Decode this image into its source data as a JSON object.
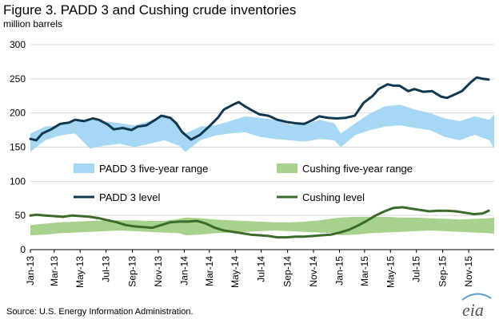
{
  "chart_data": {
    "type": "line",
    "title": "Figure 3. PADD 3 and Cushing crude inventories",
    "subtitle": "million barrels",
    "ylabel": "",
    "xlabel": "",
    "ylim": [
      0,
      300
    ],
    "yticks": [
      0,
      50,
      100,
      150,
      200,
      250,
      300
    ],
    "xlim": [
      "2013-01-04",
      "2015-12-31"
    ],
    "xtick_labels": [
      {
        "date": "2013-01-01",
        "label": "Jan-13"
      },
      {
        "date": "2013-03-01",
        "label": "Mar-13"
      },
      {
        "date": "2013-05-01",
        "label": "May-13"
      },
      {
        "date": "2013-07-01",
        "label": "Jul-13"
      },
      {
        "date": "2013-09-01",
        "label": "Sep-13"
      },
      {
        "date": "2013-11-01",
        "label": "Nov-13"
      },
      {
        "date": "2014-01-01",
        "label": "Jan-14"
      },
      {
        "date": "2014-03-01",
        "label": "Mar-14"
      },
      {
        "date": "2014-05-01",
        "label": "May-14"
      },
      {
        "date": "2014-07-01",
        "label": "Jul-14"
      },
      {
        "date": "2014-09-01",
        "label": "Sep-14"
      },
      {
        "date": "2014-11-01",
        "label": "Nov-14"
      },
      {
        "date": "2015-01-01",
        "label": "Jan-15"
      },
      {
        "date": "2015-03-01",
        "label": "Mar-15"
      },
      {
        "date": "2015-05-01",
        "label": "May-15"
      },
      {
        "date": "2015-07-01",
        "label": "Jul-15"
      },
      {
        "date": "2015-09-01",
        "label": "Sep-15"
      },
      {
        "date": "2015-11-01",
        "label": "Nov-15"
      }
    ],
    "grid": true,
    "legend": [
      {
        "name": "PADD 3 five-year range",
        "kind": "area",
        "color": "#a6d8f5"
      },
      {
        "name": "Cushing five-year range",
        "kind": "area",
        "color": "#a9d18e"
      },
      {
        "name": "PADD 3 level",
        "kind": "line",
        "color": "#10384f"
      },
      {
        "name": "Cushing level",
        "kind": "line",
        "color": "#3a6b28"
      }
    ],
    "series": [
      {
        "name": "PADD 3 five-year range",
        "type": "area",
        "color": "#a6d8f5",
        "x": [
          "2013-01-04",
          "2013-02-08",
          "2013-03-15",
          "2013-04-19",
          "2013-05-24",
          "2013-06-28",
          "2013-08-02",
          "2013-09-06",
          "2013-10-11",
          "2013-11-15",
          "2013-12-20",
          "2014-01-04",
          "2014-02-08",
          "2014-03-15",
          "2014-04-19",
          "2014-05-24",
          "2014-06-28",
          "2014-08-02",
          "2014-09-06",
          "2014-10-11",
          "2014-11-15",
          "2014-12-20",
          "2015-01-04",
          "2015-02-08",
          "2015-03-15",
          "2015-04-19",
          "2015-05-24",
          "2015-06-28",
          "2015-08-02",
          "2015-09-06",
          "2015-10-11",
          "2015-11-15",
          "2015-12-20",
          "2015-12-31"
        ],
        "low": [
          143,
          160,
          167,
          170,
          148,
          152,
          155,
          150,
          155,
          160,
          152,
          143,
          160,
          167,
          170,
          172,
          165,
          162,
          160,
          158,
          162,
          160,
          150,
          168,
          175,
          180,
          182,
          178,
          175,
          165,
          160,
          168,
          160,
          148
        ],
        "high": [
          170,
          180,
          182,
          188,
          190,
          188,
          185,
          182,
          188,
          198,
          180,
          170,
          180,
          182,
          188,
          195,
          193,
          190,
          183,
          183,
          190,
          185,
          170,
          185,
          200,
          210,
          212,
          205,
          200,
          192,
          188,
          195,
          190,
          198
        ]
      },
      {
        "name": "Cushing five-year range",
        "type": "area",
        "color": "#a9d18e",
        "x": [
          "2013-01-04",
          "2013-02-08",
          "2013-03-15",
          "2013-04-19",
          "2013-05-24",
          "2013-06-28",
          "2013-08-02",
          "2013-09-06",
          "2013-10-11",
          "2013-11-15",
          "2013-12-20",
          "2014-01-04",
          "2014-02-08",
          "2014-03-15",
          "2014-04-19",
          "2014-05-24",
          "2014-06-28",
          "2014-08-02",
          "2014-09-06",
          "2014-10-11",
          "2014-11-15",
          "2014-12-20",
          "2015-01-04",
          "2015-02-08",
          "2015-03-15",
          "2015-04-19",
          "2015-05-24",
          "2015-06-28",
          "2015-08-02",
          "2015-09-06",
          "2015-10-11",
          "2015-11-15",
          "2015-12-20",
          "2015-12-31"
        ],
        "low": [
          21,
          22,
          24,
          25,
          26,
          27,
          28,
          27,
          26,
          25,
          24,
          21,
          22,
          24,
          25,
          26,
          27,
          28,
          27,
          26,
          25,
          24,
          21,
          22,
          24,
          25,
          26,
          27,
          28,
          27,
          26,
          25,
          24,
          23
        ],
        "high": [
          36,
          38,
          40,
          41,
          42,
          43,
          43,
          43,
          42,
          42,
          45,
          47,
          46,
          44,
          43,
          42,
          41,
          40,
          40,
          41,
          43,
          46,
          47,
          48,
          48,
          48,
          47,
          47,
          46,
          45,
          44,
          45,
          46,
          47
        ]
      },
      {
        "name": "PADD 3 level",
        "type": "line",
        "color": "#10384f",
        "x": [
          "2013-01-04",
          "2013-01-18",
          "2013-02-01",
          "2013-02-22",
          "2013-03-15",
          "2013-04-05",
          "2013-04-19",
          "2013-05-10",
          "2013-05-31",
          "2013-06-14",
          "2013-07-05",
          "2013-07-19",
          "2013-08-09",
          "2013-08-30",
          "2013-09-13",
          "2013-10-04",
          "2013-10-25",
          "2013-11-08",
          "2013-11-29",
          "2013-12-13",
          "2013-12-27",
          "2014-01-17",
          "2014-02-07",
          "2014-02-28",
          "2014-03-21",
          "2014-04-04",
          "2014-04-25",
          "2014-05-09",
          "2014-05-23",
          "2014-06-06",
          "2014-06-27",
          "2014-07-18",
          "2014-08-08",
          "2014-08-29",
          "2014-09-19",
          "2014-10-10",
          "2014-10-31",
          "2014-11-14",
          "2014-12-05",
          "2014-12-26",
          "2015-01-16",
          "2015-02-06",
          "2015-02-27",
          "2015-03-20",
          "2015-04-03",
          "2015-04-24",
          "2015-05-08",
          "2015-05-22",
          "2015-06-12",
          "2015-06-26",
          "2015-07-17",
          "2015-08-07",
          "2015-08-28",
          "2015-09-11",
          "2015-10-02",
          "2015-10-16",
          "2015-11-06",
          "2015-11-20",
          "2015-12-04",
          "2015-12-18"
        ],
        "y": [
          162,
          160,
          170,
          176,
          184,
          186,
          190,
          188,
          192,
          190,
          183,
          176,
          178,
          175,
          180,
          182,
          190,
          196,
          193,
          185,
          172,
          161,
          168,
          180,
          193,
          205,
          212,
          216,
          210,
          205,
          198,
          196,
          190,
          187,
          185,
          184,
          190,
          195,
          193,
          192,
          193,
          196,
          215,
          225,
          235,
          242,
          240,
          240,
          232,
          235,
          231,
          232,
          224,
          222,
          228,
          232,
          245,
          252,
          250,
          249
        ]
      },
      {
        "name": "Cushing level",
        "type": "line",
        "color": "#3a6b28",
        "x": [
          "2013-01-04",
          "2013-01-18",
          "2013-02-08",
          "2013-03-01",
          "2013-03-22",
          "2013-04-12",
          "2013-05-03",
          "2013-05-24",
          "2013-06-14",
          "2013-07-05",
          "2013-07-26",
          "2013-08-16",
          "2013-09-06",
          "2013-09-27",
          "2013-10-18",
          "2013-11-08",
          "2013-11-29",
          "2013-12-20",
          "2014-01-10",
          "2014-01-31",
          "2014-02-21",
          "2014-03-14",
          "2014-04-04",
          "2014-04-25",
          "2014-05-16",
          "2014-06-06",
          "2014-06-27",
          "2014-07-18",
          "2014-08-08",
          "2014-08-29",
          "2014-09-19",
          "2014-10-10",
          "2014-10-31",
          "2014-11-21",
          "2014-12-12",
          "2015-01-02",
          "2015-01-23",
          "2015-02-13",
          "2015-03-06",
          "2015-03-27",
          "2015-04-17",
          "2015-05-08",
          "2015-05-29",
          "2015-06-19",
          "2015-07-10",
          "2015-07-31",
          "2015-08-21",
          "2015-09-11",
          "2015-10-02",
          "2015-10-23",
          "2015-11-13",
          "2015-12-04",
          "2015-12-18"
        ],
        "y": [
          50,
          51,
          50,
          49,
          48,
          50,
          49,
          48,
          46,
          43,
          40,
          36,
          34,
          33,
          32,
          36,
          40,
          41,
          41,
          42,
          38,
          32,
          28,
          26,
          24,
          22,
          21,
          20,
          18,
          18,
          19,
          19,
          20,
          21,
          22,
          25,
          29,
          35,
          42,
          50,
          56,
          61,
          62,
          60,
          58,
          56,
          57,
          57,
          56,
          54,
          52,
          53,
          57
        ]
      }
    ],
    "source": "Source:  U.S. Energy Information  Administration.",
    "logo_text": "eia"
  }
}
